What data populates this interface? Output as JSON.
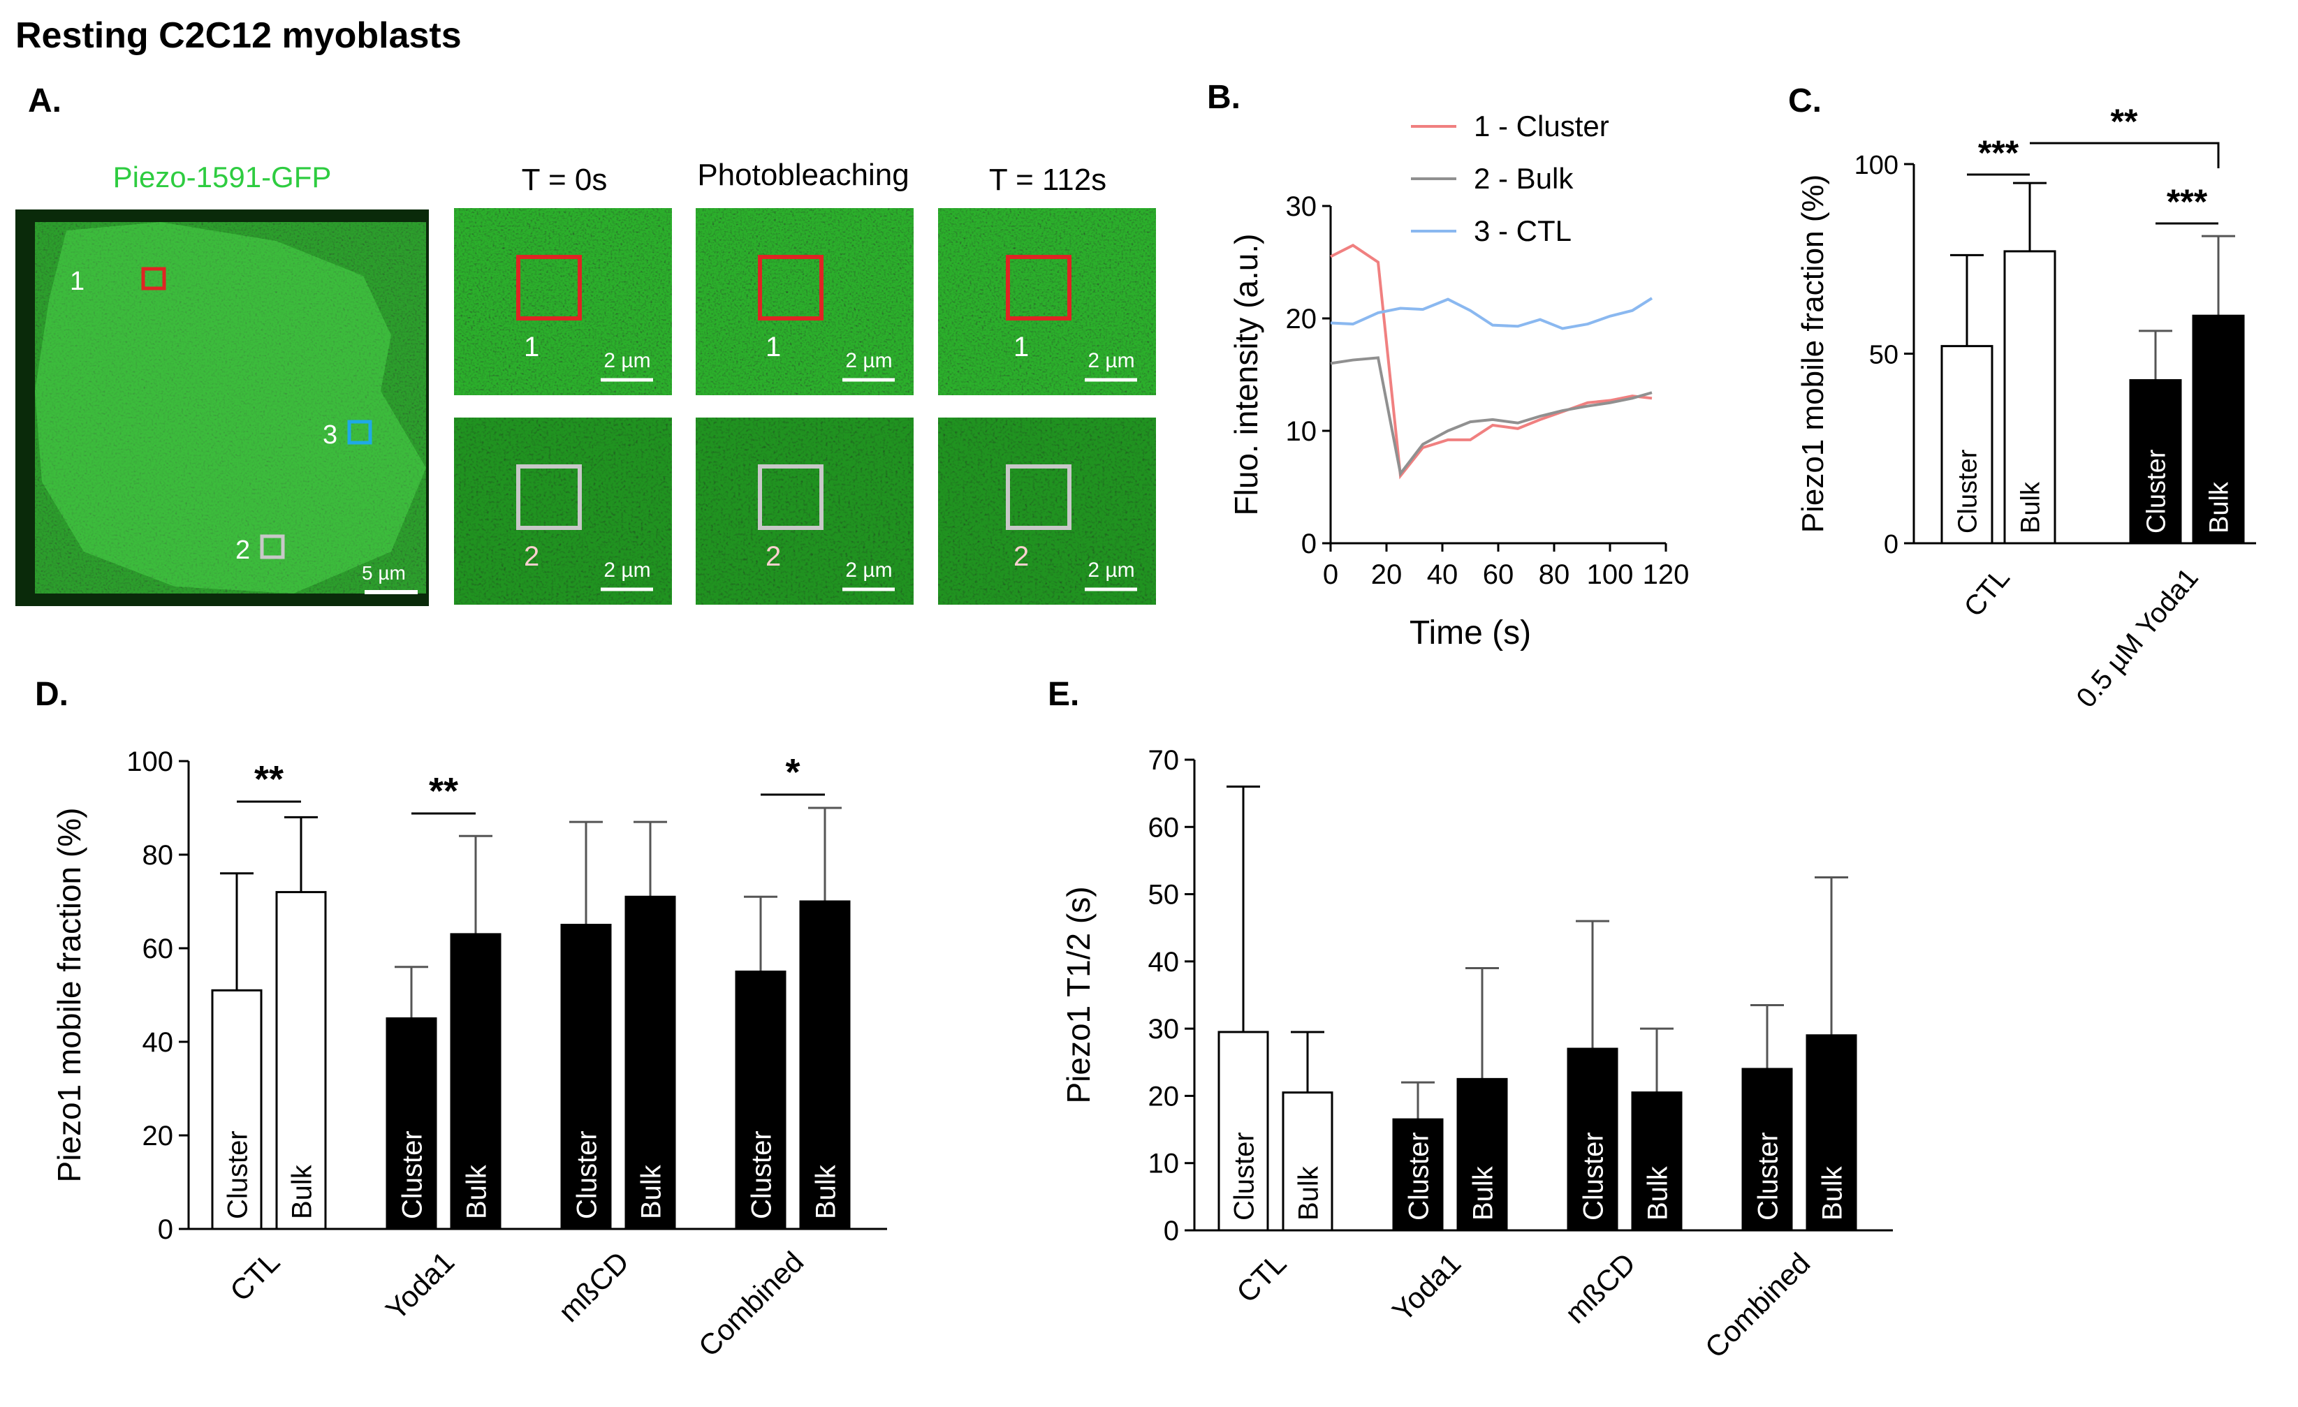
{
  "figure_title": "Resting C2C12 myoblasts",
  "panel_letters": {
    "A": "A.",
    "B": "B.",
    "C": "C.",
    "D": "D.",
    "E": "E."
  },
  "colors": {
    "gfp_bg": "#0b3a0b",
    "gfp_mid": "#1f7a1f",
    "gfp_bright": "#5fdc5f",
    "roi_cluster": "#e02424",
    "roi_bulk": "#c8c8c8",
    "roi_ctl": "#1fa9e6",
    "line_cluster": "#f08080",
    "line_bulk": "#909090",
    "line_ctl": "#8ab8f0",
    "label_green": "#2ecc40"
  },
  "panel_a": {
    "cell_label": "Piezo-1591-GFP",
    "cell_scale": "5 µm",
    "roi_numbers": [
      "1",
      "2",
      "3"
    ],
    "column_titles": [
      "T = 0s",
      "Photobleaching",
      "T = 112s"
    ],
    "tile_scale": "2 µm",
    "row_labels": [
      "1",
      "2"
    ]
  },
  "chart_data": [
    {
      "id": "B",
      "type": "line",
      "xlabel": "Time (s)",
      "ylabel": "Fluo. intensity (a.u.)",
      "xlim": [
        0,
        120
      ],
      "ylim": [
        0,
        30
      ],
      "xticks": [
        "0",
        "20",
        "40",
        "60",
        "80",
        "100",
        "120"
      ],
      "yticks": [
        "0",
        "10",
        "20",
        "30"
      ],
      "legend_position": "top-right",
      "series": [
        {
          "name": "1 - Cluster",
          "color": "#f08080",
          "x": [
            0,
            8,
            17,
            25,
            33,
            42,
            50,
            58,
            67,
            75,
            83,
            92,
            100,
            108,
            115
          ],
          "y": [
            25.5,
            26.5,
            25.0,
            6.0,
            8.5,
            9.2,
            9.2,
            10.5,
            10.2,
            11.0,
            11.7,
            12.5,
            12.7,
            13.1,
            12.9
          ]
        },
        {
          "name": "2 - Bulk",
          "color": "#909090",
          "x": [
            0,
            8,
            17,
            25,
            33,
            42,
            50,
            58,
            67,
            75,
            83,
            92,
            100,
            108,
            115
          ],
          "y": [
            16.0,
            16.3,
            16.5,
            6.2,
            8.8,
            10.0,
            10.8,
            11.0,
            10.7,
            11.3,
            11.8,
            12.2,
            12.5,
            12.9,
            13.4
          ]
        },
        {
          "name": "3 - CTL",
          "color": "#8ab8f0",
          "x": [
            0,
            8,
            17,
            25,
            33,
            42,
            50,
            58,
            67,
            75,
            83,
            92,
            100,
            108,
            115
          ],
          "y": [
            19.6,
            19.5,
            20.5,
            20.9,
            20.8,
            21.7,
            20.7,
            19.4,
            19.3,
            19.9,
            19.1,
            19.5,
            20.2,
            20.7,
            21.8
          ]
        }
      ]
    },
    {
      "id": "C",
      "type": "bar",
      "ylabel": "Piezo1 mobile fraction (%)",
      "ylim": [
        0,
        100
      ],
      "yticks": [
        "0",
        "50",
        "100"
      ],
      "groups": [
        "CTL",
        "0.5 µM Yoda1"
      ],
      "bars": [
        {
          "group": 0,
          "label": "Cluster",
          "value": 52,
          "err": 24,
          "fill": "white"
        },
        {
          "group": 0,
          "label": "Bulk",
          "value": 77,
          "err": 18,
          "fill": "white"
        },
        {
          "group": 1,
          "label": "Cluster",
          "value": 43,
          "err": 13,
          "fill": "black"
        },
        {
          "group": 1,
          "label": "Bulk",
          "value": 60,
          "err": 21,
          "fill": "black"
        }
      ],
      "significance": [
        {
          "from": 0,
          "to": 1,
          "label": "***"
        },
        {
          "from": 1,
          "to": 3,
          "label": "**"
        },
        {
          "from": 2,
          "to": 3,
          "label": "***"
        }
      ]
    },
    {
      "id": "D",
      "type": "bar",
      "ylabel": "Piezo1 mobile fraction (%)",
      "ylim": [
        0,
        100
      ],
      "yticks": [
        "0",
        "20",
        "40",
        "60",
        "80",
        "100"
      ],
      "groups": [
        "CTL",
        "Yoda1",
        "mßCD",
        "Combined"
      ],
      "bars": [
        {
          "group": 0,
          "label": "Cluster",
          "value": 51,
          "err": 25,
          "fill": "white"
        },
        {
          "group": 0,
          "label": "Bulk",
          "value": 72,
          "err": 16,
          "fill": "white"
        },
        {
          "group": 1,
          "label": "Cluster",
          "value": 45,
          "err": 11,
          "fill": "black"
        },
        {
          "group": 1,
          "label": "Bulk",
          "value": 63,
          "err": 21,
          "fill": "black"
        },
        {
          "group": 2,
          "label": "Cluster",
          "value": 65,
          "err": 22,
          "fill": "black"
        },
        {
          "group": 2,
          "label": "Bulk",
          "value": 71,
          "err": 16,
          "fill": "black"
        },
        {
          "group": 3,
          "label": "Cluster",
          "value": 55,
          "err": 16,
          "fill": "black"
        },
        {
          "group": 3,
          "label": "Bulk",
          "value": 70,
          "err": 20,
          "fill": "black"
        }
      ],
      "significance": [
        {
          "from": 0,
          "to": 1,
          "label": "**"
        },
        {
          "from": 2,
          "to": 3,
          "label": "**"
        },
        {
          "from": 6,
          "to": 7,
          "label": "*"
        }
      ]
    },
    {
      "id": "E",
      "type": "bar",
      "ylabel": "Piezo1 T1/2 (s)",
      "ylim": [
        0,
        70
      ],
      "yticks": [
        "0",
        "10",
        "20",
        "30",
        "40",
        "50",
        "60",
        "70"
      ],
      "groups": [
        "CTL",
        "Yoda1",
        "mßCD",
        "Combined"
      ],
      "bars": [
        {
          "group": 0,
          "label": "Cluster",
          "value": 29.5,
          "err": 36.5,
          "fill": "white"
        },
        {
          "group": 0,
          "label": "Bulk",
          "value": 20.5,
          "err": 9,
          "fill": "white"
        },
        {
          "group": 1,
          "label": "Cluster",
          "value": 16.5,
          "err": 5.5,
          "fill": "black"
        },
        {
          "group": 1,
          "label": "Bulk",
          "value": 22.5,
          "err": 16.5,
          "fill": "black"
        },
        {
          "group": 2,
          "label": "Cluster",
          "value": 27,
          "err": 19,
          "fill": "black"
        },
        {
          "group": 2,
          "label": "Bulk",
          "value": 20.5,
          "err": 9.5,
          "fill": "black"
        },
        {
          "group": 3,
          "label": "Cluster",
          "value": 24,
          "err": 9.5,
          "fill": "black"
        },
        {
          "group": 3,
          "label": "Bulk",
          "value": 29,
          "err": 23.5,
          "fill": "black"
        }
      ],
      "significance": []
    }
  ]
}
